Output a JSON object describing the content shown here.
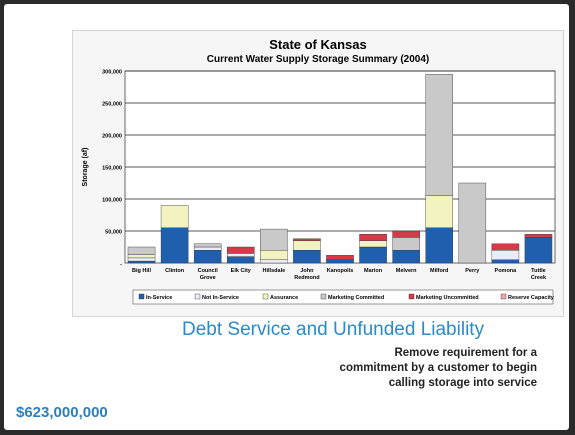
{
  "chart_data": {
    "type": "bar",
    "stacked": true,
    "title": "State of Kansas",
    "subtitle": "Current Water Supply Storage Summary (2004)",
    "ylabel": "Storage (af)",
    "xlabel": "",
    "ylim": [
      0,
      300000
    ],
    "yticks": [
      "-",
      "50,000",
      "100,000",
      "150,000",
      "200,000",
      "250,000",
      "300,000"
    ],
    "grid": true,
    "legend_position": "bottom",
    "categories": [
      "Big Hill",
      "Clinton",
      "Council Grove",
      "Elk City",
      "Hillsdale",
      "John Redmond",
      "Kanopolis",
      "Marion",
      "Melvern",
      "Milford",
      "Perry",
      "Pomona",
      "Tuttle Creek"
    ],
    "category_labels": [
      [
        "Big Hill"
      ],
      [
        "Clinton"
      ],
      [
        "Council",
        "Grove"
      ],
      [
        "Elk City"
      ],
      [
        "Hillsdale"
      ],
      [
        "John",
        "Redmond"
      ],
      [
        "Kanopolis"
      ],
      [
        "Marion"
      ],
      [
        "Melvern"
      ],
      [
        "Milford"
      ],
      [
        "Perry"
      ],
      [
        "Pomona"
      ],
      [
        "Tuttle",
        "Creek"
      ]
    ],
    "series": [
      {
        "name": "In-Service",
        "color": "#1f5fae",
        "values": [
          3000,
          55000,
          20000,
          10000,
          0,
          20000,
          5000,
          25000,
          20000,
          55000,
          0,
          5000,
          40000
        ]
      },
      {
        "name": "Not In-Service",
        "color": "#e9eef6",
        "values": [
          5000,
          0,
          5000,
          5000,
          5000,
          0,
          0,
          0,
          0,
          0,
          0,
          15000,
          0
        ]
      },
      {
        "name": "Assurance",
        "color": "#f3f3c2",
        "values": [
          5000,
          35000,
          0,
          0,
          15000,
          15000,
          0,
          10000,
          0,
          50000,
          0,
          0,
          0
        ]
      },
      {
        "name": "Marketing Committed",
        "color": "#c9c9c9",
        "values": [
          12000,
          0,
          5000,
          0,
          33000,
          0,
          0,
          0,
          20000,
          190000,
          125000,
          0,
          0
        ]
      },
      {
        "name": "Marketing Uncommitted",
        "color": "#d63a48",
        "values": [
          0,
          0,
          0,
          10000,
          0,
          3000,
          7000,
          10000,
          10000,
          0,
          0,
          10000,
          5000
        ]
      },
      {
        "name": "Reserve Capacity",
        "color": "#f2a6b0",
        "values": [
          0,
          0,
          0,
          0,
          0,
          0,
          0,
          0,
          0,
          0,
          0,
          0,
          0
        ]
      }
    ]
  },
  "text": {
    "heading": "Debt Service and Unfunded Liability",
    "body_lines": [
      "Remove requirement for a",
      "commitment by a customer to begin",
      "calling storage into service"
    ],
    "amount": "$623,000,000"
  }
}
